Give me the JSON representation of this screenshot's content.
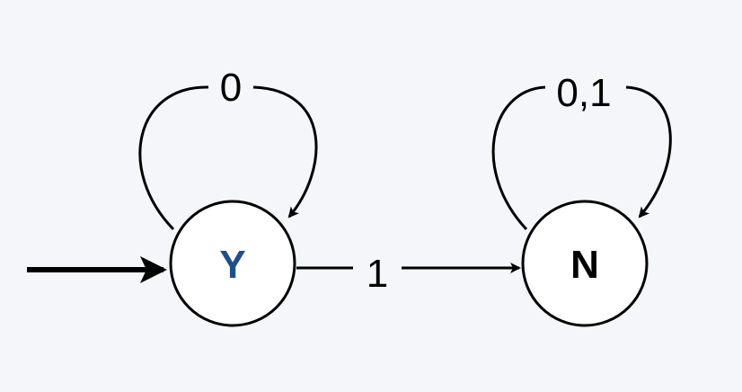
{
  "states": [
    {
      "id": "Y",
      "label": "Y",
      "label_color": "#1f4e8c",
      "initial": true
    },
    {
      "id": "N",
      "label": "N",
      "label_color": "#000000",
      "initial": false
    }
  ],
  "transitions": [
    {
      "from": "Y",
      "to": "Y",
      "label": "0"
    },
    {
      "from": "Y",
      "to": "N",
      "label": "1"
    },
    {
      "from": "N",
      "to": "N",
      "label": "0,1"
    }
  ]
}
